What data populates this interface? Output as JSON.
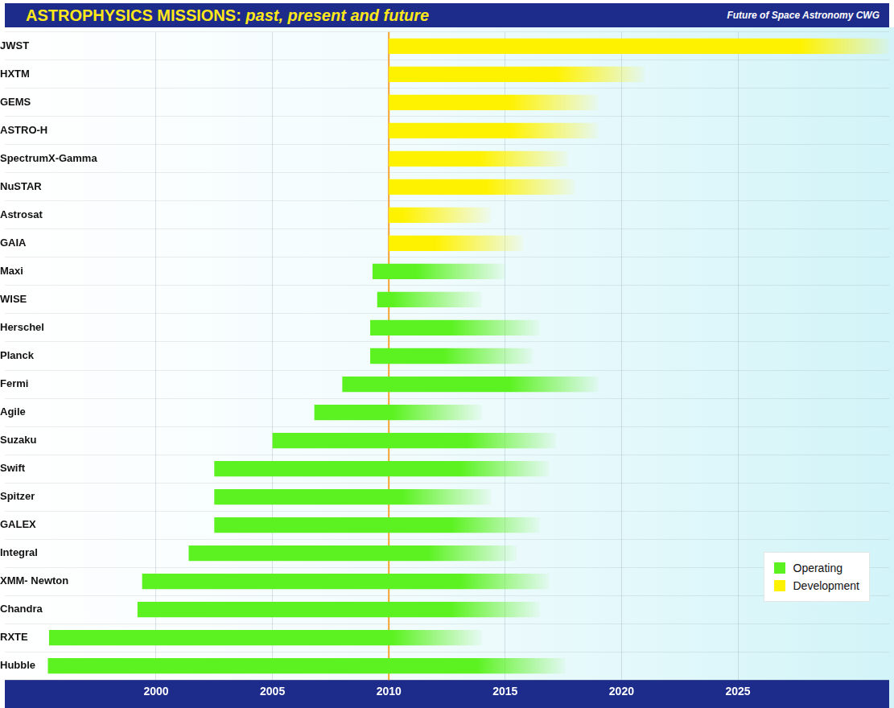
{
  "chart_data": {
    "type": "bar",
    "orientation": "horizontal",
    "title": "ASTROPHYSICS MISSIONS: past, present and future",
    "subtitle": "Future of Space Astronomy CWG",
    "categories": [
      "JWST",
      "HXTM",
      "GEMS",
      "ASTRO-H",
      "SpectrumX-Gamma",
      "NuSTAR",
      "Astrosat",
      "GAIA",
      "Maxi",
      "WISE",
      "Herschel",
      "Planck",
      "Fermi",
      "Agile",
      "Suzaku",
      "Swift",
      "Spitzer",
      "GALEX",
      "Integral",
      "XMM- Newton",
      "Chandra",
      "RXTE",
      "Hubble"
    ],
    "series": [
      {
        "name": "Operating",
        "color": "#5cf222",
        "values": [
          null,
          null,
          null,
          null,
          null,
          null,
          null,
          null,
          [
            2009.3,
            2015.0
          ],
          [
            2009.5,
            2014.0
          ],
          [
            2009.2,
            2016.5
          ],
          [
            2009.2,
            2016.2
          ],
          [
            2008.0,
            2019.0
          ],
          [
            2006.8,
            2014.0
          ],
          [
            2005.0,
            2017.2
          ],
          [
            2002.5,
            2016.9
          ],
          [
            2002.5,
            2014.4
          ],
          [
            2002.5,
            2016.5
          ],
          [
            2001.4,
            2015.5
          ],
          [
            1999.4,
            2016.9
          ],
          [
            1999.2,
            2016.5
          ],
          [
            1995.4,
            2014.0
          ],
          [
            1995.35,
            2017.6
          ]
        ]
      },
      {
        "name": "Development",
        "color": "#fff200",
        "values": [
          [
            2010.0,
            2031.5
          ],
          [
            2010.0,
            2021.0
          ],
          [
            2010.0,
            2019.0
          ],
          [
            2010.0,
            2019.0
          ],
          [
            2010.0,
            2017.7
          ],
          [
            2010.0,
            2018.0
          ],
          [
            2010.0,
            2014.4
          ],
          [
            2010.0,
            2015.8
          ],
          null,
          null,
          null,
          null,
          null,
          null,
          null,
          null,
          null,
          null,
          null,
          null,
          null,
          null,
          null
        ]
      }
    ],
    "xlim": [
      1993.5,
      2031.5
    ],
    "xticks": [
      2000,
      2005,
      2010,
      2015,
      2020,
      2025
    ],
    "reference_x": 2010,
    "grid": true,
    "legend": "lower right"
  }
}
